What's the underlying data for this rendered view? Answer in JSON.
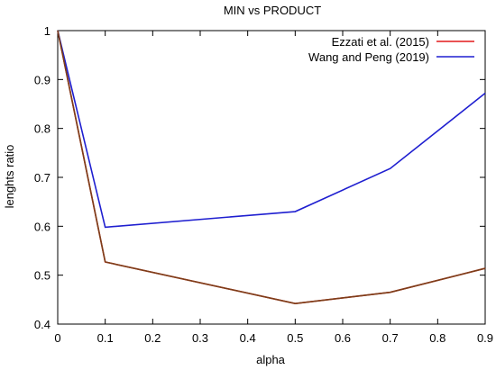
{
  "chart_data": {
    "type": "line",
    "title": "MIN vs PRODUCT",
    "xlabel": "alpha",
    "ylabel": "lenghts ratio",
    "xlim": [
      0,
      0.9
    ],
    "ylim": [
      0.4,
      1
    ],
    "xticks": [
      0,
      0.1,
      0.2,
      0.3,
      0.4,
      0.5,
      0.6,
      0.7,
      0.8,
      0.9
    ],
    "yticks": [
      0.4,
      0.5,
      0.6,
      0.7,
      0.8,
      0.9,
      1
    ],
    "grid": false,
    "legend_position": "top-right",
    "series": [
      {
        "name": "Ezzati et al. (2015)",
        "color": "#e41a1c",
        "x": [
          0,
          0.1,
          0.5,
          0.7,
          0.9
        ],
        "y": [
          1,
          0.527,
          0.442,
          0.465,
          0.514
        ]
      },
      {
        "name": "Wang and Peng (2019)",
        "color": "#1f1fd0",
        "x": [
          0,
          0.1,
          0.5,
          0.7,
          0.9
        ],
        "y": [
          1,
          0.598,
          0.63,
          0.718,
          0.872
        ]
      }
    ],
    "overlap_color": "#7b3f1a"
  }
}
